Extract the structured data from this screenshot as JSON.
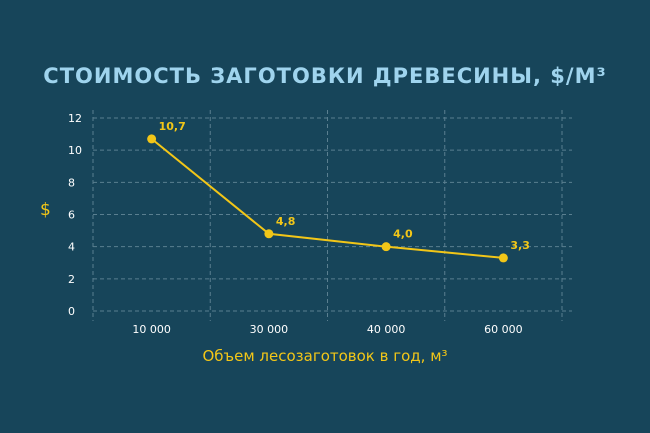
{
  "chart_data": {
    "type": "line",
    "title": "СТОИМОСТЬ ЗАГОТОВКИ ДРЕВЕСИНЫ, $/М³",
    "xlabel": "Объем лесозаготовок в год, м³",
    "ylabel": "$",
    "categories": [
      "10 000",
      "30 000",
      "40 000",
      "60 000"
    ],
    "values": [
      10.7,
      4.8,
      4.0,
      3.3
    ],
    "data_labels": [
      "10,7",
      "4,8",
      "4,0",
      "3,3"
    ],
    "yticks": [
      0,
      2,
      4,
      6,
      8,
      10,
      12
    ],
    "ylim": [
      0,
      12
    ],
    "grid": true,
    "grid_style": "dashed",
    "colors": {
      "background": "#17455a",
      "line": "#f2c618",
      "grid": "#5a7f90",
      "title": "#9fd4ee",
      "tick": "#ffffff"
    }
  }
}
